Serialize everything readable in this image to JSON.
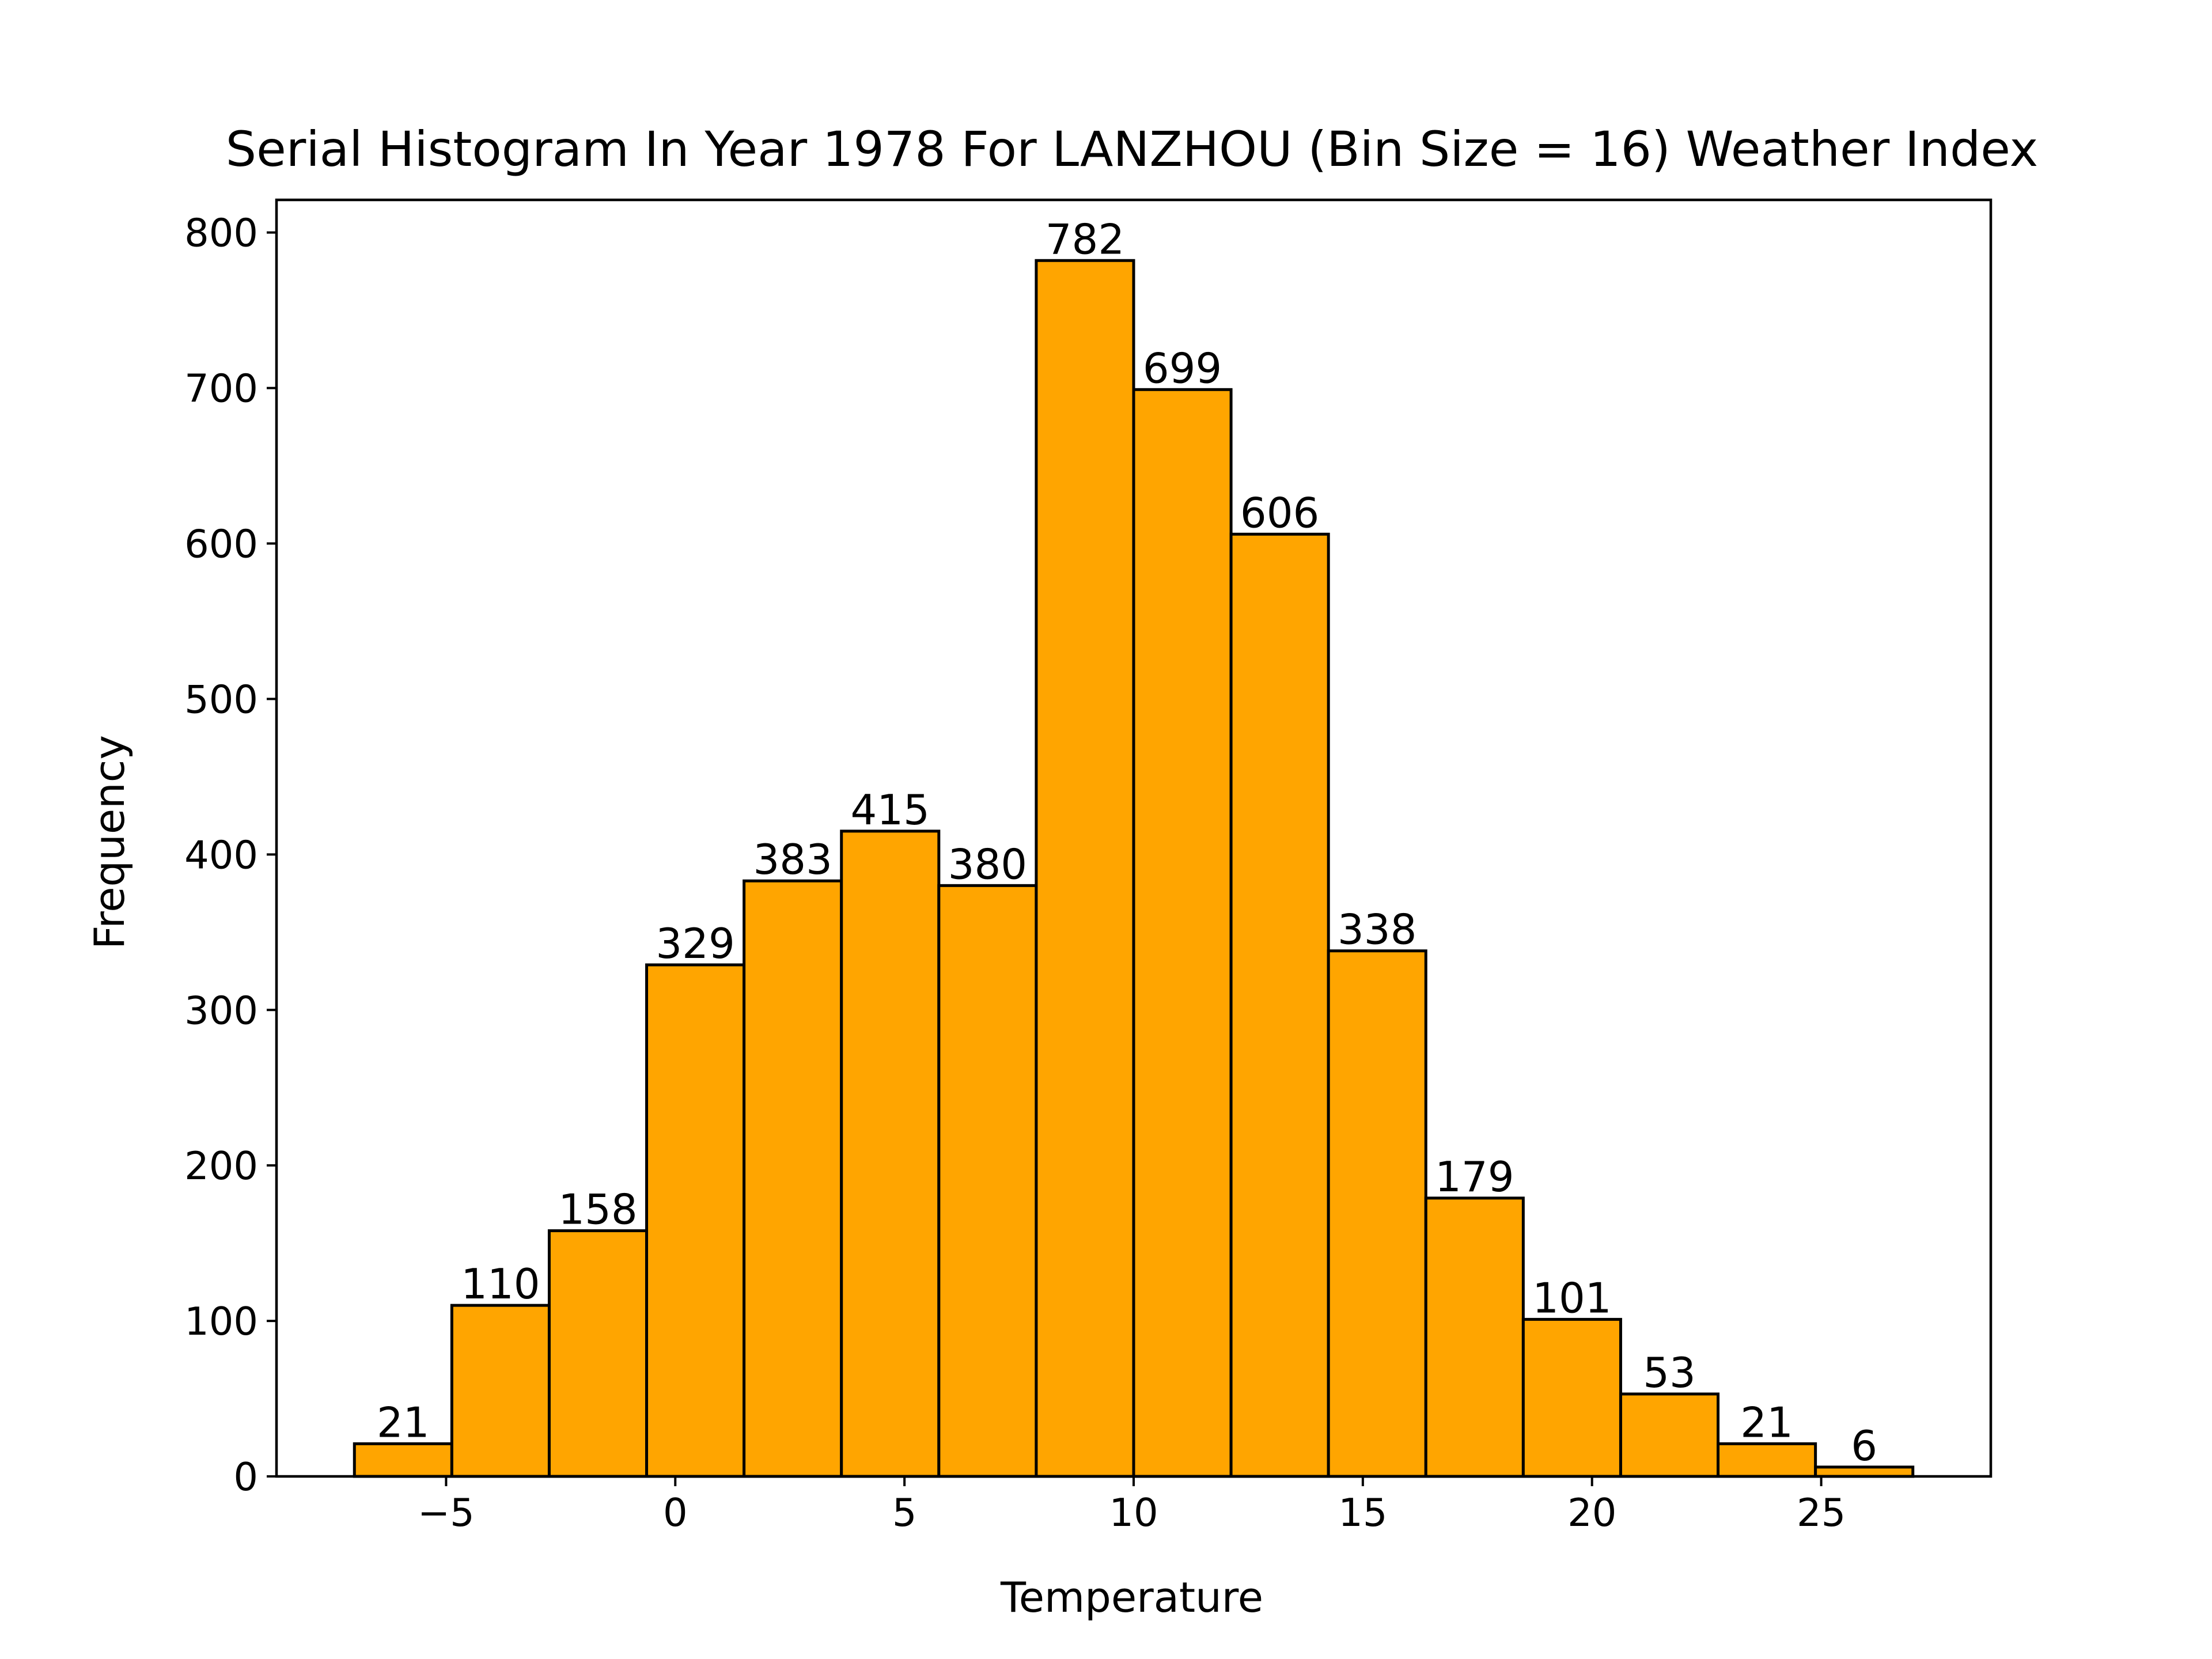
{
  "chart_data": {
    "type": "bar",
    "title": "Serial Histogram In Year 1978 For LANZHOU (Bin Size = 16) Weather Index",
    "xlabel": "Temperature",
    "ylabel": "Frequency",
    "bin_edges": [
      -7.0,
      -4.875,
      -2.75,
      -0.625,
      1.5,
      3.625,
      5.75,
      7.875,
      10.0,
      12.125,
      14.25,
      16.375,
      18.5,
      20.625,
      22.75,
      24.875,
      27.0
    ],
    "values": [
      21,
      110,
      158,
      329,
      383,
      415,
      380,
      782,
      699,
      606,
      338,
      179,
      101,
      53,
      21,
      6
    ],
    "data_labels": [
      "21",
      "110",
      "158",
      "329",
      "383",
      "415",
      "380",
      "782",
      "699",
      "606",
      "338",
      "179",
      "101",
      "53",
      "21",
      "6"
    ],
    "xlim": [
      -8.7,
      28.7
    ],
    "ylim": [
      0,
      821
    ],
    "xticks": [
      -5,
      0,
      5,
      10,
      15,
      20,
      25
    ],
    "xtick_labels": [
      "−5",
      "0",
      "5",
      "10",
      "15",
      "20",
      "25"
    ],
    "yticks": [
      0,
      100,
      200,
      300,
      400,
      500,
      600,
      700,
      800
    ],
    "ytick_labels": [
      "0",
      "100",
      "200",
      "300",
      "400",
      "500",
      "600",
      "700",
      "800"
    ],
    "grid": false,
    "legend": "none",
    "bar_color": "#FFA500",
    "edge_color": "#000000"
  }
}
